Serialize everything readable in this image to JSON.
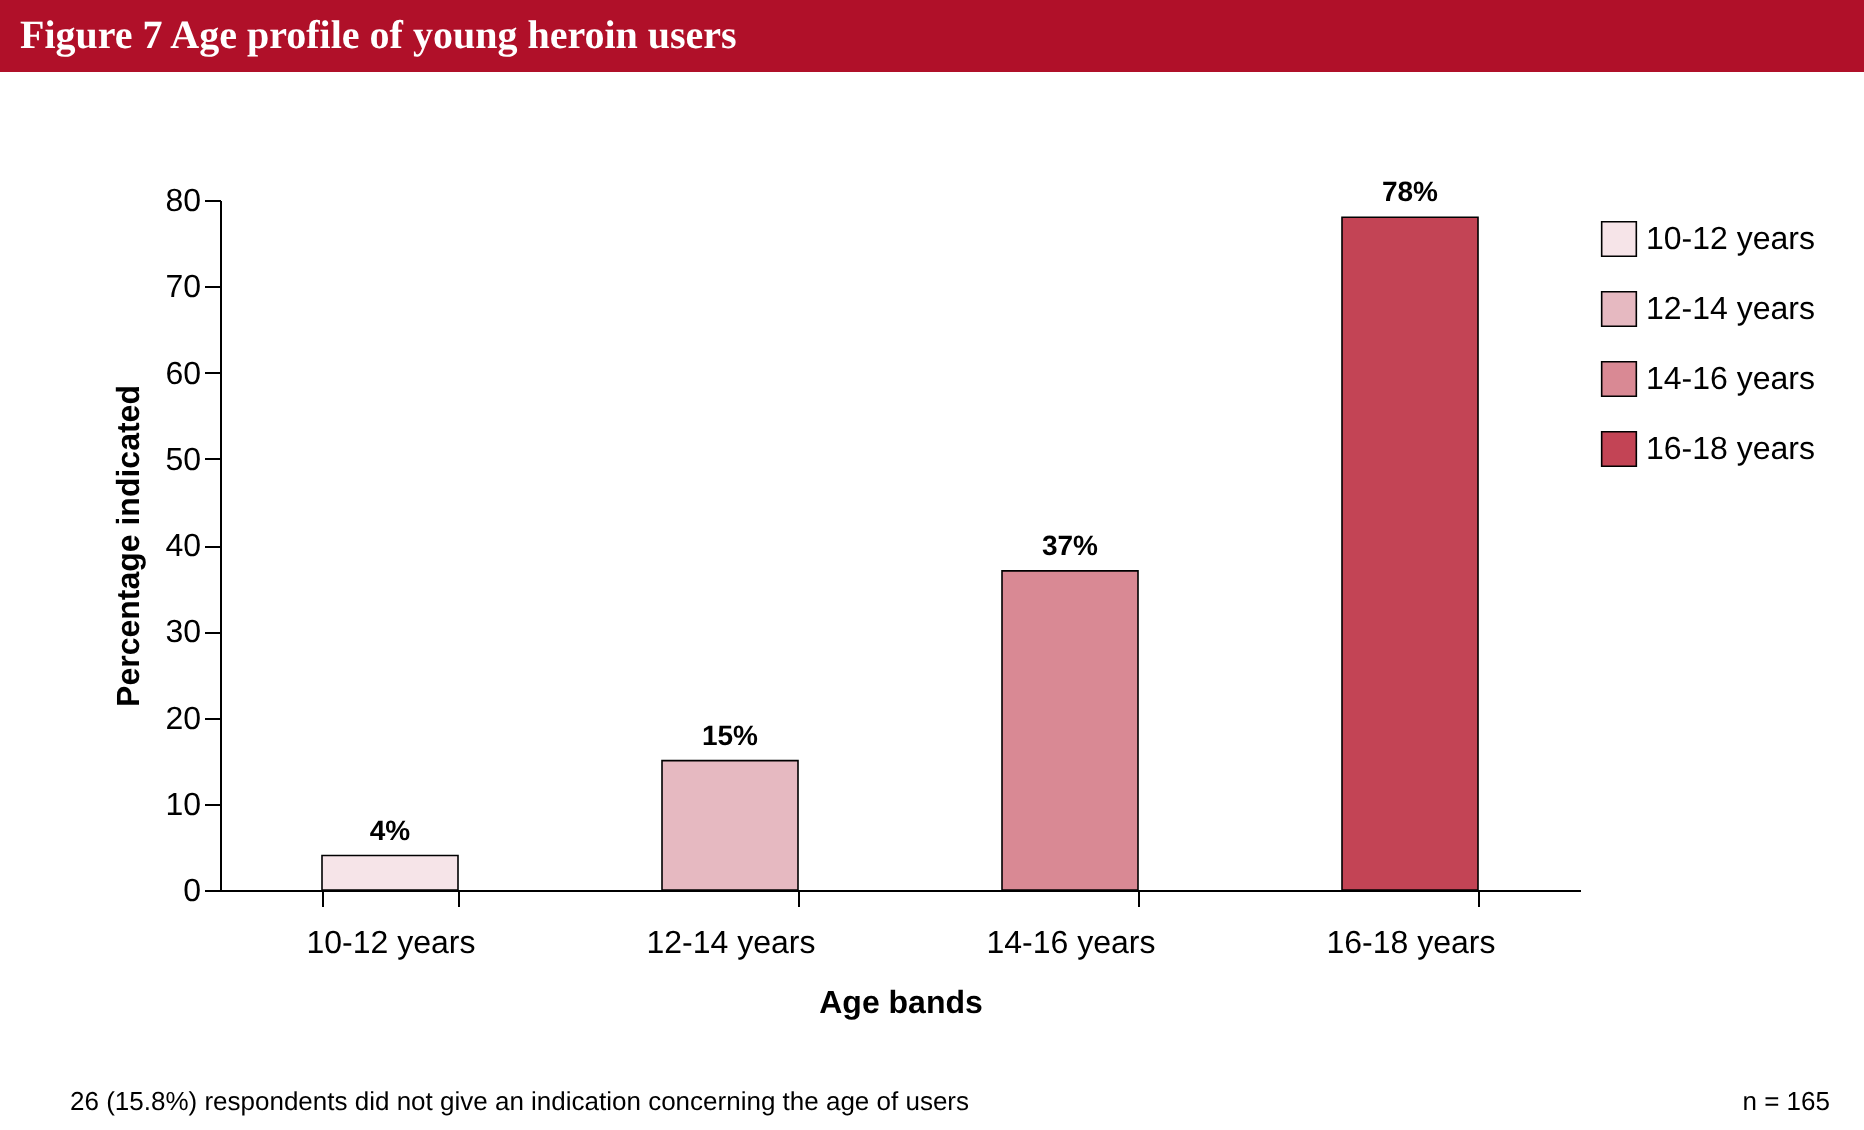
{
  "chart_data": {
    "type": "bar",
    "title": "Figure 7  Age profile of young heroin users",
    "xlabel": "Age bands",
    "ylabel": "Percentage indicated",
    "categories": [
      "10-12 years",
      "12-14 years",
      "14-16 years",
      "16-18 years"
    ],
    "series": [
      {
        "name": "10-12 years",
        "color": "#f6e4e8",
        "values": [
          4,
          null,
          null,
          null
        ],
        "value_labels": [
          "4%",
          null,
          null,
          null
        ]
      },
      {
        "name": "12-14 years",
        "color": "#e6b9c1",
        "values": [
          null,
          15,
          null,
          null
        ],
        "value_labels": [
          null,
          "15%",
          null,
          null
        ]
      },
      {
        "name": "14-16 years",
        "color": "#d98994",
        "values": [
          null,
          null,
          37,
          null
        ],
        "value_labels": [
          null,
          null,
          "37%",
          null
        ]
      },
      {
        "name": "16-18 years",
        "color": "#c34455",
        "values": [
          null,
          null,
          null,
          78
        ],
        "value_labels": [
          null,
          null,
          null,
          "78%"
        ]
      }
    ],
    "ylim": [
      0,
      80
    ],
    "yticks": [
      0,
      10,
      20,
      30,
      40,
      50,
      60,
      70,
      80
    ],
    "grid": false,
    "legend": "top right",
    "annotations": [
      "26 (15.8%) respondents did not give an indication concerning the age of users",
      "n = 165"
    ]
  }
}
